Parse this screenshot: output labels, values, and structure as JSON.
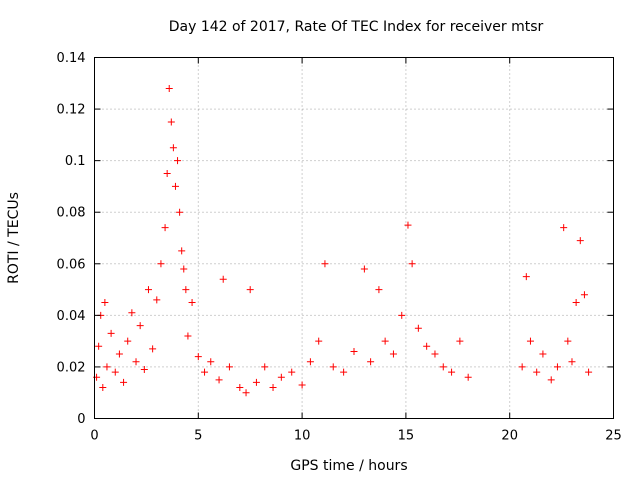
{
  "chart_data": {
    "type": "scatter",
    "title": "Day 142 of 2017, Rate Of TEC Index for receiver mtsr",
    "xlabel": "GPS time / hours",
    "ylabel": "ROTI / TECUs",
    "xlim": [
      0,
      25
    ],
    "ylim": [
      0,
      0.14
    ],
    "xticks": [
      0,
      5,
      10,
      15,
      20,
      25
    ],
    "xtick_labels": [
      "0",
      "5",
      "10",
      "15",
      "20",
      "25"
    ],
    "yticks": [
      0,
      0.02,
      0.04,
      0.06,
      0.08,
      0.1,
      0.12,
      0.14
    ],
    "ytick_labels": [
      "0",
      "0.02",
      "0.04",
      "0.06",
      "0.08",
      "0.1",
      "0.12",
      "0.14"
    ],
    "grid": true,
    "marker": "+",
    "color": "#ff0000",
    "series": [
      {
        "name": "ROTI",
        "x_range": [
          0,
          18.2,
          20.4,
          23.8
        ],
        "points": [
          [
            0.1,
            0.016
          ],
          [
            0.2,
            0.028
          ],
          [
            0.3,
            0.04
          ],
          [
            0.4,
            0.012
          ],
          [
            0.5,
            0.045
          ],
          [
            0.6,
            0.02
          ],
          [
            0.8,
            0.033
          ],
          [
            1.0,
            0.018
          ],
          [
            1.2,
            0.025
          ],
          [
            1.4,
            0.014
          ],
          [
            1.6,
            0.03
          ],
          [
            1.8,
            0.041
          ],
          [
            2.0,
            0.022
          ],
          [
            2.2,
            0.036
          ],
          [
            2.4,
            0.019
          ],
          [
            2.6,
            0.05
          ],
          [
            2.8,
            0.027
          ],
          [
            3.0,
            0.046
          ],
          [
            3.2,
            0.06
          ],
          [
            3.4,
            0.074
          ],
          [
            3.5,
            0.095
          ],
          [
            3.6,
            0.128
          ],
          [
            3.7,
            0.115
          ],
          [
            3.8,
            0.105
          ],
          [
            3.9,
            0.09
          ],
          [
            4.0,
            0.1
          ],
          [
            4.1,
            0.08
          ],
          [
            4.2,
            0.065
          ],
          [
            4.3,
            0.058
          ],
          [
            4.4,
            0.05
          ],
          [
            4.5,
            0.032
          ],
          [
            4.7,
            0.045
          ],
          [
            5.0,
            0.024
          ],
          [
            5.3,
            0.018
          ],
          [
            5.6,
            0.022
          ],
          [
            6.0,
            0.015
          ],
          [
            6.2,
            0.054
          ],
          [
            6.5,
            0.02
          ],
          [
            7.0,
            0.012
          ],
          [
            7.3,
            0.01
          ],
          [
            7.5,
            0.05
          ],
          [
            7.8,
            0.014
          ],
          [
            8.2,
            0.02
          ],
          [
            8.6,
            0.012
          ],
          [
            9.0,
            0.016
          ],
          [
            9.5,
            0.018
          ],
          [
            10.0,
            0.013
          ],
          [
            10.4,
            0.022
          ],
          [
            10.8,
            0.03
          ],
          [
            11.1,
            0.06
          ],
          [
            11.5,
            0.02
          ],
          [
            12.0,
            0.018
          ],
          [
            12.5,
            0.026
          ],
          [
            13.0,
            0.058
          ],
          [
            13.3,
            0.022
          ],
          [
            13.7,
            0.05
          ],
          [
            14.0,
            0.03
          ],
          [
            14.4,
            0.025
          ],
          [
            14.8,
            0.04
          ],
          [
            15.1,
            0.075
          ],
          [
            15.3,
            0.06
          ],
          [
            15.6,
            0.035
          ],
          [
            16.0,
            0.028
          ],
          [
            16.4,
            0.025
          ],
          [
            16.8,
            0.02
          ],
          [
            17.2,
            0.018
          ],
          [
            17.6,
            0.03
          ],
          [
            18.0,
            0.016
          ],
          [
            20.6,
            0.02
          ],
          [
            20.8,
            0.055
          ],
          [
            21.0,
            0.03
          ],
          [
            21.3,
            0.018
          ],
          [
            21.6,
            0.025
          ],
          [
            22.0,
            0.015
          ],
          [
            22.3,
            0.02
          ],
          [
            22.6,
            0.074
          ],
          [
            22.8,
            0.03
          ],
          [
            23.0,
            0.022
          ],
          [
            23.2,
            0.045
          ],
          [
            23.4,
            0.069
          ],
          [
            23.6,
            0.048
          ],
          [
            23.8,
            0.018
          ]
        ]
      }
    ]
  }
}
